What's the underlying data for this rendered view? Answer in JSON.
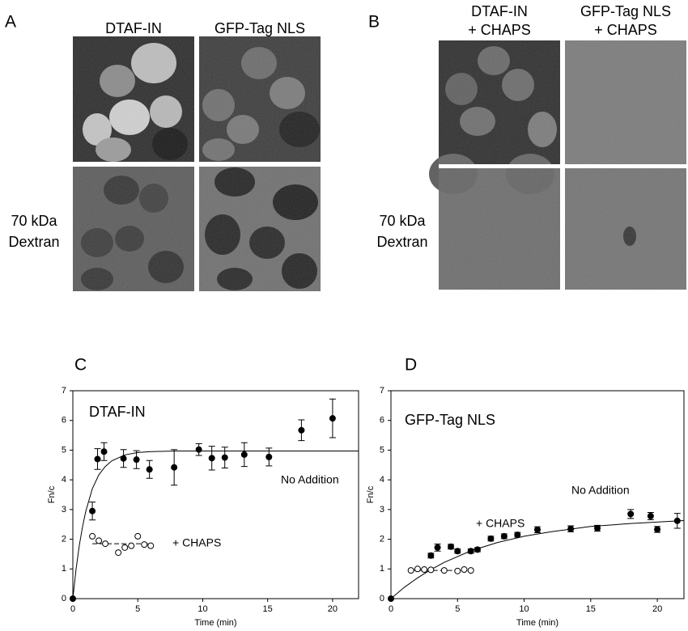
{
  "panels": [
    {
      "label": "A",
      "columns": [
        [
          "DTAF-IN"
        ],
        [
          "GFP-Tag NLS"
        ]
      ],
      "row_label": [
        "70 kDa",
        "Dextran"
      ]
    },
    {
      "label": "B",
      "columns": [
        [
          "DTAF-IN",
          "+ CHAPS"
        ],
        [
          "GFP-Tag NLS",
          "+ CHAPS"
        ]
      ],
      "row_label": [
        "70 kDa",
        "Dextran"
      ]
    }
  ],
  "chart_data": [
    {
      "type": "scatter",
      "label": "C",
      "title": "DTAF-IN",
      "xlabel": "Time (min)",
      "ylabel": "Fn/c",
      "xlim": [
        0,
        22
      ],
      "xticks": [
        0,
        5,
        10,
        15,
        20
      ],
      "ylim": [
        0,
        7
      ],
      "yticks": [
        0,
        1,
        2,
        3,
        4,
        5,
        6,
        7
      ],
      "series": [
        {
          "name": "No Addition",
          "color": "#000000",
          "marker": "filled",
          "x": [
            0,
            1.5,
            1.9,
            2.4,
            3.9,
            4.9,
            5.9,
            7.8,
            9.7,
            10.7,
            11.7,
            13.2,
            15.1,
            17.6,
            20
          ],
          "values": [
            0,
            2.95,
            4.7,
            4.95,
            4.72,
            4.68,
            4.35,
            4.42,
            5.02,
            4.73,
            4.75,
            4.85,
            4.77,
            5.67,
            6.07
          ],
          "errors": [
            null,
            0.3,
            0.35,
            0.3,
            0.3,
            0.3,
            0.3,
            0.6,
            0.2,
            0.4,
            0.35,
            0.4,
            0.3,
            0.35,
            0.65
          ]
        },
        {
          "name": "+ CHAPS",
          "color": "#000000",
          "marker": "open",
          "x": [
            1.5,
            2,
            2.5,
            3.5,
            4,
            4.5,
            5,
            5.5,
            6
          ],
          "values": [
            2.1,
            1.95,
            1.85,
            1.55,
            1.72,
            1.78,
            2.1,
            1.82,
            1.78
          ]
        }
      ],
      "curves": [
        {
          "dash": false,
          "x": [
            0,
            0.25,
            0.5,
            0.75,
            1,
            1.5,
            2,
            2.5,
            3,
            4,
            5,
            6,
            8,
            10,
            15,
            20,
            22
          ],
          "values": [
            0,
            1,
            1.8,
            2.43,
            2.95,
            3.7,
            4.17,
            4.45,
            4.64,
            4.84,
            4.92,
            4.95,
            4.97,
            4.97,
            4.97,
            4.97,
            4.97
          ]
        },
        {
          "dash": true,
          "x": [
            1.5,
            6
          ],
          "values": [
            1.85,
            1.85
          ]
        }
      ]
    },
    {
      "type": "scatter",
      "label": "D",
      "title": "GFP-Tag NLS",
      "xlabel": "Time (min)",
      "ylabel": "Fn/c",
      "xlim": [
        0,
        22
      ],
      "xticks": [
        0,
        5,
        10,
        15,
        20
      ],
      "ylim": [
        0,
        7
      ],
      "yticks": [
        0,
        1,
        2,
        3,
        4,
        5,
        6,
        7
      ],
      "series": [
        {
          "name": "No Addition",
          "color": "#000000",
          "marker": "filled",
          "x": [
            0,
            3,
            3.5,
            4.5,
            5,
            6,
            6.5,
            7.5,
            8.5,
            9.5,
            11,
            13.5,
            15.5,
            18,
            19.5,
            20,
            21.5
          ],
          "values": [
            0,
            1.45,
            1.72,
            1.75,
            1.6,
            1.6,
            1.65,
            2.02,
            2.1,
            2.15,
            2.32,
            2.35,
            2.37,
            2.85,
            2.78,
            2.33,
            2.62
          ],
          "errors": [
            null,
            0.08,
            0.12,
            0.08,
            0.07,
            0.07,
            0.07,
            0.08,
            0.08,
            0.08,
            0.1,
            0.1,
            0.1,
            0.15,
            0.12,
            0.1,
            0.25
          ]
        },
        {
          "name": "+ CHAPS",
          "color": "#000000",
          "marker": "open",
          "x": [
            1.5,
            2,
            2.5,
            3,
            4,
            5,
            5.5,
            6
          ],
          "values": [
            0.95,
            1,
            0.98,
            0.97,
            0.95,
            0.93,
            0.98,
            0.95
          ]
        }
      ],
      "curves": [
        {
          "dash": false,
          "x": [
            0,
            1,
            2,
            3,
            4,
            6,
            8,
            10,
            12,
            15,
            18,
            22
          ],
          "values": [
            0,
            0.38,
            0.7,
            0.98,
            1.22,
            1.61,
            1.89,
            2.1,
            2.25,
            2.43,
            2.53,
            2.63
          ]
        },
        {
          "dash": true,
          "x": [
            1.5,
            6
          ],
          "values": [
            0.95,
            0.95
          ]
        }
      ]
    }
  ]
}
